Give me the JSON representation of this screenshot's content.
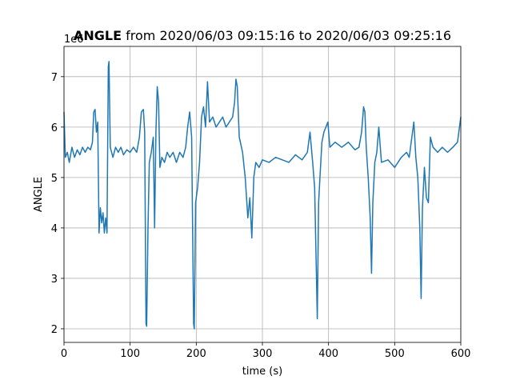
{
  "chart_data": {
    "type": "line",
    "title_bold": "ANGLE",
    "title": " from 2020/06/03 09:15:16 to 2020/06/03 09:25:16",
    "offset_text": "1e6",
    "x_label": "time (s)",
    "y_label": "ANGLE",
    "xlim": [
      0,
      600
    ],
    "xticks": [
      0,
      100,
      200,
      300,
      400,
      500,
      600
    ],
    "ylim": [
      1.73,
      7.6
    ],
    "yticks": [
      2,
      3,
      4,
      5,
      6,
      7
    ],
    "grid": true,
    "series": [
      {
        "color": "#1f77b4",
        "x": [
          0,
          2,
          5,
          8,
          12,
          16,
          20,
          24,
          28,
          32,
          36,
          40,
          43,
          45,
          47,
          49,
          51,
          53,
          55,
          57,
          59,
          61,
          63,
          65,
          67,
          68,
          70,
          74,
          78,
          82,
          86,
          90,
          95,
          100,
          105,
          110,
          114,
          117,
          120,
          122,
          124,
          125,
          127,
          129,
          132,
          135,
          137,
          139,
          141,
          143,
          145,
          148,
          152,
          156,
          160,
          165,
          170,
          175,
          180,
          184,
          187,
          190,
          193,
          196,
          197,
          199,
          202,
          205,
          208,
          211,
          214,
          217,
          220,
          225,
          230,
          235,
          240,
          245,
          250,
          255,
          258,
          260,
          262,
          265,
          270,
          274,
          278,
          281,
          284,
          287,
          290,
          295,
          300,
          310,
          320,
          330,
          340,
          350,
          360,
          368,
          372,
          376,
          379,
          381,
          383,
          385,
          387,
          390,
          393,
          396,
          399,
          402,
          410,
          420,
          430,
          440,
          446,
          450,
          453,
          455,
          457,
          460,
          463,
          465,
          467,
          470,
          473,
          476,
          480,
          490,
          500,
          510,
          518,
          522,
          526,
          529,
          532,
          535,
          538,
          540,
          542,
          545,
          548,
          551,
          554,
          558,
          565,
          572,
          580,
          588,
          595,
          600
        ],
        "values": [
          6.3,
          5.4,
          5.5,
          5.3,
          5.6,
          5.4,
          5.55,
          5.45,
          5.6,
          5.5,
          5.6,
          5.55,
          5.7,
          6.3,
          6.35,
          5.9,
          6.1,
          3.9,
          4.4,
          4.1,
          4.3,
          3.9,
          4.2,
          3.9,
          7.2,
          7.3,
          5.6,
          5.4,
          5.6,
          5.5,
          5.6,
          5.45,
          5.55,
          5.5,
          5.6,
          5.5,
          5.8,
          6.3,
          6.35,
          5.9,
          2.1,
          2.05,
          4.0,
          5.3,
          5.5,
          5.8,
          4.0,
          5.9,
          6.8,
          6.5,
          5.2,
          5.4,
          5.3,
          5.5,
          5.4,
          5.5,
          5.3,
          5.5,
          5.4,
          5.6,
          6.0,
          6.3,
          5.8,
          2.1,
          2.0,
          4.5,
          4.8,
          5.3,
          6.2,
          6.4,
          6.0,
          6.9,
          6.1,
          6.2,
          6.0,
          6.1,
          6.2,
          6.0,
          6.1,
          6.2,
          6.5,
          6.95,
          6.8,
          5.8,
          5.5,
          5.0,
          4.2,
          4.6,
          3.8,
          5.0,
          5.3,
          5.2,
          5.35,
          5.3,
          5.4,
          5.35,
          5.3,
          5.45,
          5.35,
          5.5,
          5.9,
          5.3,
          4.8,
          3.5,
          2.2,
          4.5,
          5.0,
          5.7,
          5.9,
          6.0,
          6.1,
          5.6,
          5.7,
          5.6,
          5.7,
          5.55,
          5.6,
          5.9,
          6.4,
          6.3,
          5.6,
          5.0,
          4.2,
          3.1,
          4.5,
          5.3,
          5.5,
          6.0,
          5.3,
          5.35,
          5.2,
          5.4,
          5.5,
          5.4,
          5.8,
          6.1,
          5.4,
          5.0,
          4.0,
          2.6,
          4.4,
          5.2,
          4.6,
          4.5,
          5.8,
          5.6,
          5.5,
          5.6,
          5.5,
          5.6,
          5.7,
          6.2
        ]
      }
    ]
  }
}
